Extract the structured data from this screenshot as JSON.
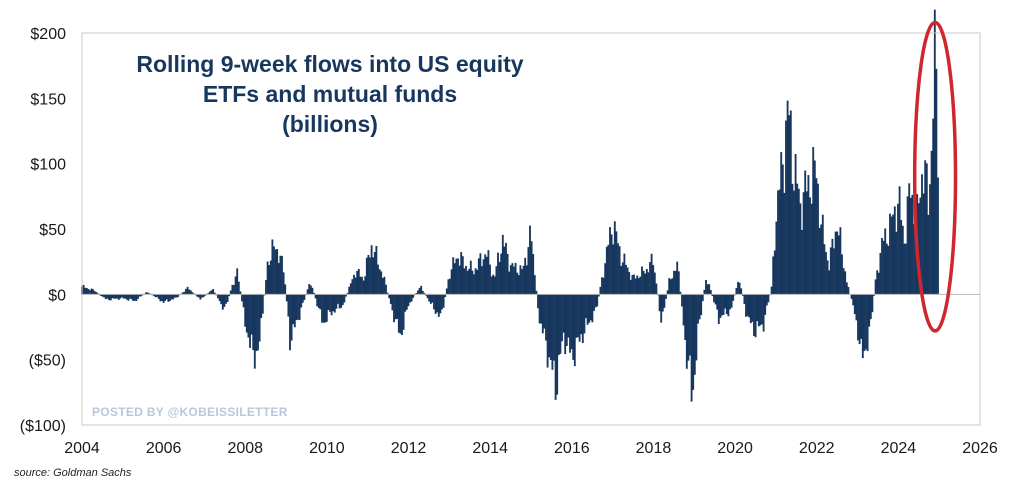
{
  "chart_data": {
    "type": "bar",
    "title_lines": [
      "Rolling 9-week flows into US equity",
      "ETFs and mutual funds",
      "(billions)"
    ],
    "xlabel": "",
    "ylabel": "",
    "xlim": [
      2004,
      2026
    ],
    "ylim": [
      -100,
      200
    ],
    "x_ticks": [
      2004,
      2006,
      2008,
      2010,
      2012,
      2014,
      2016,
      2018,
      2020,
      2022,
      2024,
      2026
    ],
    "y_ticks": [
      {
        "value": 200,
        "label": "$200"
      },
      {
        "value": 150,
        "label": "$150"
      },
      {
        "value": 100,
        "label": "$100"
      },
      {
        "value": 50,
        "label": "$50"
      },
      {
        "value": 0,
        "label": "$0"
      },
      {
        "value": -50,
        "label": "($50)"
      },
      {
        "value": -100,
        "label": "($100)"
      }
    ],
    "grid": false,
    "bar_color": "#17375e",
    "highlight_color": "#d0262e",
    "watermark": "POSTED BY @KOBEISSILETTER",
    "source": "source: Goldman Sachs",
    "highlight": {
      "x_range": [
        2024.4,
        2025.4
      ],
      "y_range": [
        -28,
        208
      ]
    },
    "series": [
      {
        "name": "Rolling 9-week flows",
        "anchors": [
          [
            2004.0,
            6
          ],
          [
            2004.3,
            3
          ],
          [
            2004.6,
            -4
          ],
          [
            2005.0,
            -3
          ],
          [
            2005.3,
            -5
          ],
          [
            2005.6,
            2
          ],
          [
            2006.0,
            -6
          ],
          [
            2006.3,
            -3
          ],
          [
            2006.6,
            5
          ],
          [
            2006.9,
            -4
          ],
          [
            2007.2,
            4
          ],
          [
            2007.5,
            -12
          ],
          [
            2007.8,
            18
          ],
          [
            2008.0,
            -22
          ],
          [
            2008.2,
            -48
          ],
          [
            2008.35,
            -38
          ],
          [
            2008.55,
            25
          ],
          [
            2008.75,
            38
          ],
          [
            2008.95,
            18
          ],
          [
            2009.1,
            -35
          ],
          [
            2009.3,
            -18
          ],
          [
            2009.6,
            10
          ],
          [
            2009.9,
            -22
          ],
          [
            2010.1,
            -14
          ],
          [
            2010.4,
            -8
          ],
          [
            2010.7,
            18
          ],
          [
            2010.9,
            12
          ],
          [
            2011.1,
            38
          ],
          [
            2011.4,
            12
          ],
          [
            2011.6,
            -12
          ],
          [
            2011.8,
            -32
          ],
          [
            2012.0,
            -8
          ],
          [
            2012.3,
            6
          ],
          [
            2012.6,
            -10
          ],
          [
            2012.8,
            -18
          ],
          [
            2013.0,
            15
          ],
          [
            2013.2,
            30
          ],
          [
            2013.4,
            22
          ],
          [
            2013.6,
            18
          ],
          [
            2013.9,
            32
          ],
          [
            2014.1,
            12
          ],
          [
            2014.3,
            42
          ],
          [
            2014.5,
            22
          ],
          [
            2014.8,
            18
          ],
          [
            2015.0,
            46
          ],
          [
            2015.2,
            -18
          ],
          [
            2015.4,
            -42
          ],
          [
            2015.6,
            -70
          ],
          [
            2015.8,
            -32
          ],
          [
            2016.0,
            -48
          ],
          [
            2016.3,
            -28
          ],
          [
            2016.6,
            -12
          ],
          [
            2016.8,
            22
          ],
          [
            2017.0,
            55
          ],
          [
            2017.2,
            30
          ],
          [
            2017.5,
            12
          ],
          [
            2017.8,
            18
          ],
          [
            2018.0,
            26
          ],
          [
            2018.2,
            -22
          ],
          [
            2018.4,
            12
          ],
          [
            2018.6,
            22
          ],
          [
            2018.8,
            -42
          ],
          [
            2018.95,
            -78
          ],
          [
            2019.1,
            -28
          ],
          [
            2019.3,
            14
          ],
          [
            2019.6,
            -18
          ],
          [
            2019.9,
            -12
          ],
          [
            2020.1,
            12
          ],
          [
            2020.3,
            -18
          ],
          [
            2020.5,
            -28
          ],
          [
            2020.7,
            -22
          ],
          [
            2020.9,
            6
          ],
          [
            2021.0,
            60
          ],
          [
            2021.15,
            95
          ],
          [
            2021.3,
            140
          ],
          [
            2021.45,
            95
          ],
          [
            2021.6,
            68
          ],
          [
            2021.8,
            85
          ],
          [
            2022.0,
            95
          ],
          [
            2022.1,
            55
          ],
          [
            2022.3,
            22
          ],
          [
            2022.5,
            55
          ],
          [
            2022.6,
            35
          ],
          [
            2022.75,
            8
          ],
          [
            2022.9,
            -10
          ],
          [
            2023.0,
            -25
          ],
          [
            2023.1,
            -50
          ],
          [
            2023.3,
            -30
          ],
          [
            2023.45,
            12
          ],
          [
            2023.6,
            38
          ],
          [
            2023.8,
            52
          ],
          [
            2024.0,
            72
          ],
          [
            2024.15,
            42
          ],
          [
            2024.3,
            82
          ],
          [
            2024.45,
            55
          ],
          [
            2024.6,
            100
          ],
          [
            2024.75,
            70
          ],
          [
            2024.85,
            145
          ],
          [
            2024.92,
            182
          ],
          [
            2024.99,
            90
          ]
        ]
      }
    ]
  }
}
